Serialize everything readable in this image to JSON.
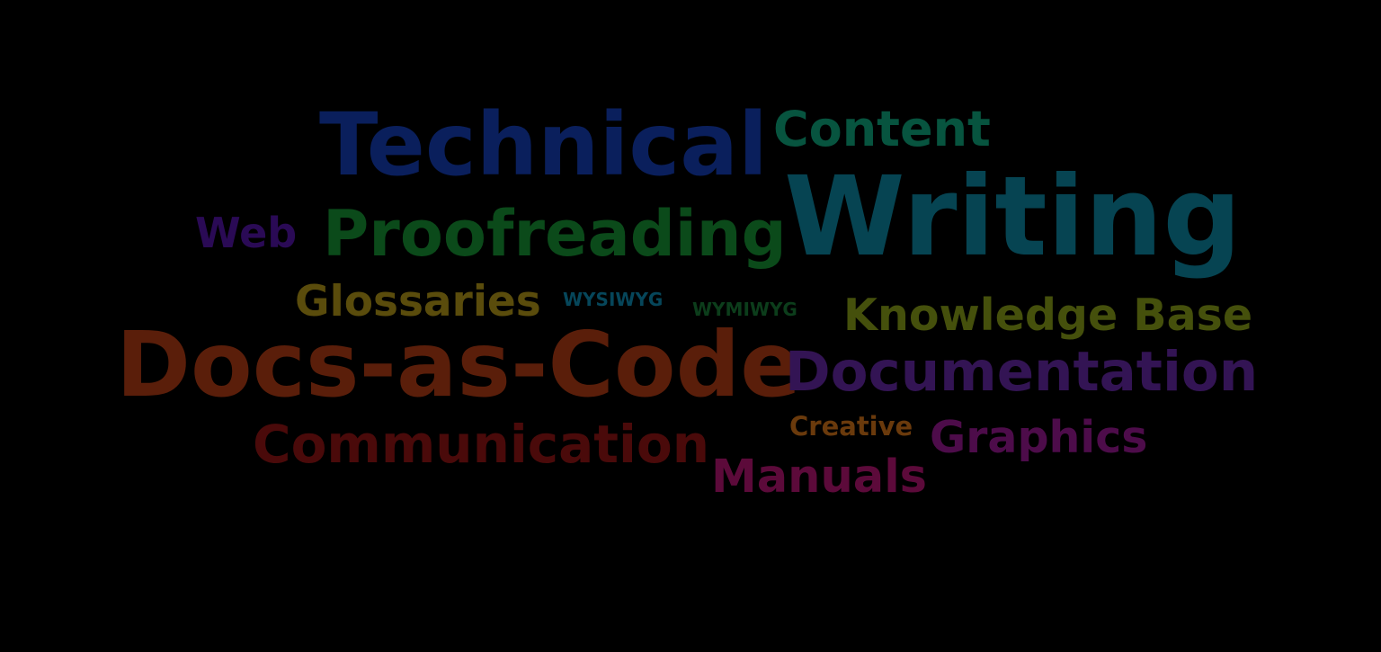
{
  "word_cloud": {
    "background": "#000000",
    "words": [
      {
        "text": "Technical",
        "color": "#0a1f5c"
      },
      {
        "text": "Content",
        "color": "#07543f"
      },
      {
        "text": "Writing",
        "color": "#064452"
      },
      {
        "text": "Web",
        "color": "#2a0a55"
      },
      {
        "text": "Proofreading",
        "color": "#0b4a1a"
      },
      {
        "text": "Glossaries",
        "color": "#5a4c0c"
      },
      {
        "text": "WYSIWYG",
        "color": "#06465a"
      },
      {
        "text": "WYMIWYG",
        "color": "#0c3d1b"
      },
      {
        "text": "Knowledge Base",
        "color": "#45500c"
      },
      {
        "text": "Docs-as-Code",
        "color": "#5a1e0a"
      },
      {
        "text": "Documentation",
        "color": "#331454"
      },
      {
        "text": "Communication",
        "color": "#4a0a0a"
      },
      {
        "text": "Creative",
        "color": "#6a3a0c"
      },
      {
        "text": "Graphics",
        "color": "#4d0c4a"
      },
      {
        "text": "Manuals",
        "color": "#5c0a3a"
      }
    ]
  }
}
